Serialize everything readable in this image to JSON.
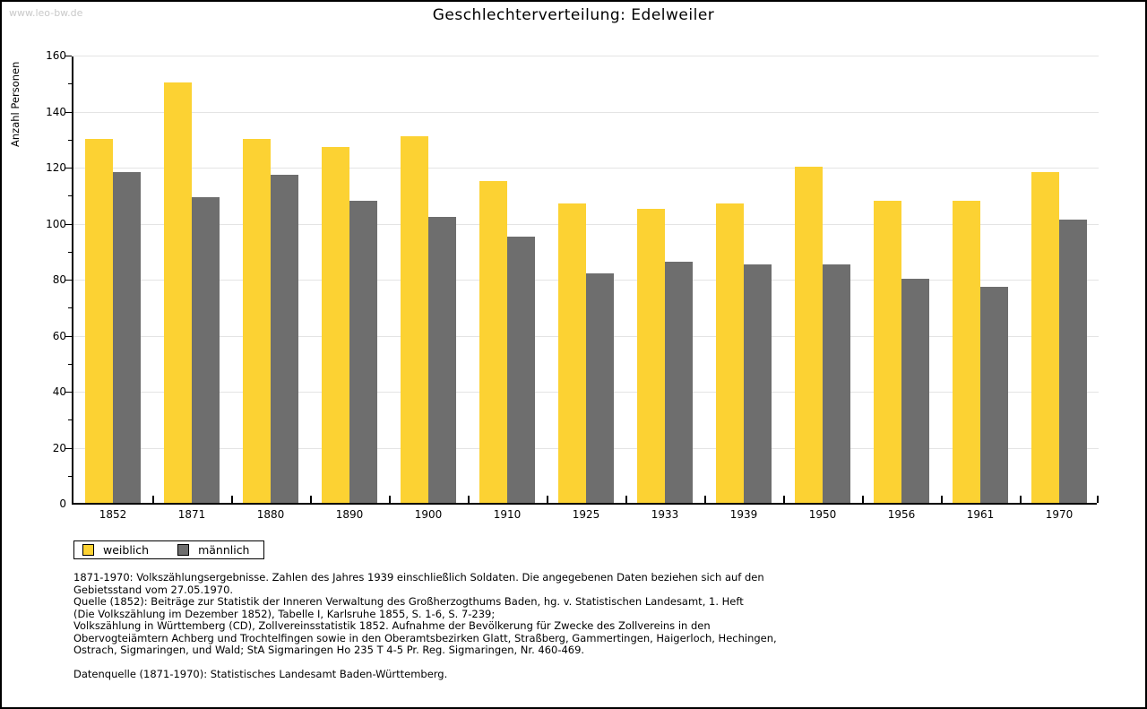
{
  "watermark": "www.leo-bw.de",
  "chart_data": {
    "type": "bar",
    "title": "Geschlechterverteilung: Edelweiler",
    "xlabel": "",
    "ylabel": "Anzahl Personen",
    "ylim": [
      0,
      160
    ],
    "ytick_step": 20,
    "ytick_minor_step": 10,
    "grid": true,
    "legend_position": "bottom-left",
    "categories": [
      "1852",
      "1871",
      "1880",
      "1890",
      "1900",
      "1910",
      "1925",
      "1933",
      "1939",
      "1950",
      "1956",
      "1961",
      "1970"
    ],
    "series": [
      {
        "name": "weiblich",
        "color": "#fcd233",
        "values": [
          130,
          150,
          130,
          127,
          131,
          115,
          107,
          105,
          107,
          120,
          108,
          108,
          118
        ]
      },
      {
        "name": "männlich",
        "color": "#6e6e6e",
        "values": [
          118,
          109,
          117,
          108,
          102,
          95,
          82,
          86,
          85,
          85,
          80,
          77,
          101
        ]
      }
    ]
  },
  "footnotes": {
    "lines": [
      "1871-1970: Volkszählungsergebnisse. Zahlen des Jahres 1939 einschließlich Soldaten. Die angegebenen Daten beziehen sich auf den",
      "Gebietsstand vom 27.05.1970.",
      "Quelle (1852): Beiträge zur Statistik der Inneren Verwaltung des Großherzogthums Baden, hg. v. Statistischen Landesamt, 1. Heft",
      "(Die Volkszählung im Dezember 1852), Tabelle I, Karlsruhe 1855, S. 1-6, S. 7-239;",
      "Volkszählung in Württemberg (CD), Zollvereinsstatistik 1852. Aufnahme der Bevölkerung für Zwecke des Zollvereins in den",
      "Obervogteiämtern Achberg und Trochtelfingen sowie in den Oberamtsbezirken Glatt, Straßberg, Gammertingen, Haigerloch, Hechingen,",
      "Ostrach, Sigmaringen, und Wald; StA Sigmaringen Ho 235 T 4-5 Pr. Reg. Sigmaringen, Nr. 460-469."
    ],
    "datasource": "Datenquelle (1871-1970): Statistisches Landesamt Baden-Württemberg."
  }
}
